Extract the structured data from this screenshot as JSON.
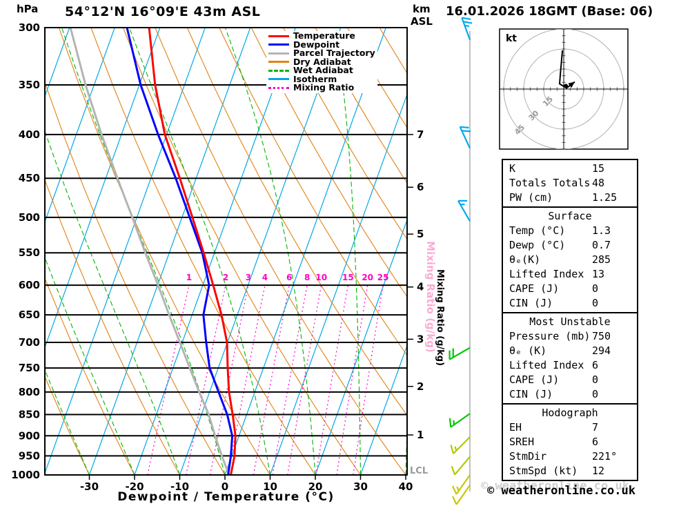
{
  "header": {
    "left_unit": "hPa",
    "title": "54°12'N 16°09'E 43m ASL",
    "right_unit_top": "km",
    "right_unit_bottom": "ASL",
    "datetime": "16.01.2026 18GMT (Base: 06)"
  },
  "axes": {
    "pressure_ticks": [
      300,
      350,
      400,
      450,
      500,
      550,
      600,
      650,
      700,
      750,
      800,
      850,
      900,
      950,
      1000
    ],
    "temperature_ticks": [
      -30,
      -20,
      -10,
      0,
      10,
      20,
      30,
      40
    ],
    "x_label": "Dewpoint / Temperature (°C)",
    "km_ticks": [
      {
        "label": "7",
        "pressure": 400
      },
      {
        "label": "6",
        "pressure": 461
      },
      {
        "label": "5",
        "pressure": 523
      },
      {
        "label": "4",
        "pressure": 603
      },
      {
        "label": "3",
        "pressure": 694
      },
      {
        "label": "2",
        "pressure": 788
      },
      {
        "label": "1",
        "pressure": 898
      }
    ],
    "mixing_ratio_axis_label": "Mixing Ratio (g/kg)",
    "lcl_label": "LCL",
    "lcl_pressure": 989
  },
  "legend": {
    "items": [
      {
        "label": "Temperature",
        "color": "#ff0000",
        "style": "solid"
      },
      {
        "label": "Dewpoint",
        "color": "#0000ff",
        "style": "solid"
      },
      {
        "label": "Parcel Trajectory",
        "color": "#b4b4b4",
        "style": "solid"
      },
      {
        "label": "Dry Adiabat",
        "color": "#e08214",
        "style": "solid"
      },
      {
        "label": "Wet Adiabat",
        "color": "#00b400",
        "style": "dashed"
      },
      {
        "label": "Isotherm",
        "color": "#00a8e8",
        "style": "solid"
      },
      {
        "label": "Mixing Ratio",
        "color": "#ff00c8",
        "style": "dotted"
      }
    ]
  },
  "chart_data": {
    "type": "line",
    "title": "Skew-T log-P sounding 54°12'N 16°09'E 43m ASL, 16.01.2026 18GMT (Base: 06)",
    "xlabel": "Dewpoint / Temperature (°C)",
    "ylabel": "hPa",
    "pressure_axis_range": [
      300,
      1000
    ],
    "temperature_axis_range": [
      -40,
      40
    ],
    "x_pressure_hPa": [
      1000,
      950,
      900,
      850,
      800,
      750,
      700,
      650,
      600,
      550,
      500,
      450,
      400,
      350,
      300
    ],
    "series": [
      {
        "name": "Temperature",
        "unit": "°C",
        "color": "#ff0000",
        "values": [
          1.3,
          0.6,
          -0.8,
          -3.1,
          -5.7,
          -7.9,
          -10.1,
          -13.5,
          -17.7,
          -22.4,
          -27.7,
          -33.6,
          -40.4,
          -46.5,
          -52.4
        ]
      },
      {
        "name": "Dewpoint",
        "unit": "°C",
        "color": "#0000ff",
        "values": [
          0.7,
          -0.2,
          -1.5,
          -4.3,
          -8.0,
          -11.9,
          -14.7,
          -17.5,
          -18.6,
          -22.7,
          -28.3,
          -34.5,
          -41.9,
          -49.7,
          -57.3
        ]
      },
      {
        "name": "Parcel Trajectory",
        "unit": "°C",
        "color": "#b4b4b4",
        "values": [
          0.9,
          -2.2,
          -5.3,
          -8.4,
          -12.3,
          -16.3,
          -20.5,
          -25.1,
          -29.9,
          -35.3,
          -41.0,
          -47.4,
          -54.4,
          -61.9,
          -69.8
        ]
      }
    ],
    "mixing_ratio_lines_g_per_kg": [
      1,
      2,
      3,
      4,
      6,
      8,
      10,
      15,
      20,
      25
    ]
  },
  "wind_barbs": [
    {
      "pressure": 310,
      "direction_deg": 340,
      "feathers": [
        1,
        1,
        0.5
      ],
      "color": "#00aaf0"
    },
    {
      "pressure": 415,
      "direction_deg": 335,
      "feathers": [
        1,
        1
      ],
      "color": "#00aaf0"
    },
    {
      "pressure": 505,
      "direction_deg": 330,
      "feathers": [
        1,
        0.5
      ],
      "color": "#00aaf0"
    },
    {
      "pressure": 710,
      "direction_deg": 240,
      "feathers": [
        1,
        1
      ],
      "color": "#00c800"
    },
    {
      "pressure": 848,
      "direction_deg": 235,
      "feathers": [
        1,
        0.5
      ],
      "color": "#00c800"
    },
    {
      "pressure": 903,
      "direction_deg": 225,
      "feathers": [
        1,
        0.5
      ],
      "color": "#b4c800"
    },
    {
      "pressure": 952,
      "direction_deg": 220,
      "feathers": [
        1
      ],
      "color": "#b4c800"
    },
    {
      "pressure": 1000,
      "direction_deg": 215,
      "feathers": [
        1,
        0.5
      ],
      "color": "#c8c800"
    },
    {
      "pressure": 1028,
      "direction_deg": 215,
      "feathers": [
        1
      ],
      "color": "#c8c800"
    }
  ],
  "hodograph": {
    "unit_label": "kt",
    "ring_radii_kt": [
      15,
      30,
      45
    ],
    "trace_kt": [
      [
        -1,
        29
      ],
      [
        -2.6,
        10.6
      ],
      [
        -3.1,
        3.9
      ],
      [
        2.1,
        0.8
      ],
      [
        8.3,
        5.4
      ]
    ],
    "storm_dot_kt": [
      1.6,
      2.3
    ]
  },
  "tables": [
    {
      "rows": [
        [
          "K",
          "15"
        ],
        [
          "Totals Totals",
          "48"
        ],
        [
          "PW (cm)",
          "1.25"
        ]
      ]
    },
    {
      "header": "Surface",
      "rows": [
        [
          "Temp (°C)",
          "1.3"
        ],
        [
          "Dewp (°C)",
          "0.7"
        ],
        [
          "θₑ(K)",
          "285"
        ],
        [
          "Lifted Index",
          "13"
        ],
        [
          "CAPE (J)",
          "0"
        ],
        [
          "CIN (J)",
          "0"
        ]
      ]
    },
    {
      "header": "Most Unstable",
      "rows": [
        [
          "Pressure (mb)",
          "750"
        ],
        [
          "θₑ (K)",
          "294"
        ],
        [
          "Lifted Index",
          "6"
        ],
        [
          "CAPE (J)",
          "0"
        ],
        [
          "CIN (J)",
          "0"
        ]
      ]
    },
    {
      "header": "Hodograph",
      "rows": [
        [
          "EH",
          "7"
        ],
        [
          "SREH",
          "6"
        ],
        [
          "StmDir",
          "221°"
        ],
        [
          "StmSpd (kt)",
          "12"
        ]
      ]
    }
  ],
  "footer": {
    "copyright": "© weatheronline.co.uk"
  },
  "colors": {
    "isotherm": "#00a8e8",
    "dry_adiabat": "#e08214",
    "wet_adiabat": "#00b400",
    "mixing_ratio": "#ff00c8",
    "isobar": "#000000",
    "wind_column": "#c0c0c0",
    "mixing_axis_pink": "#ffaad4",
    "lcl_gray": "#999999",
    "hodo_ring_gray": "#b0b0b0"
  }
}
